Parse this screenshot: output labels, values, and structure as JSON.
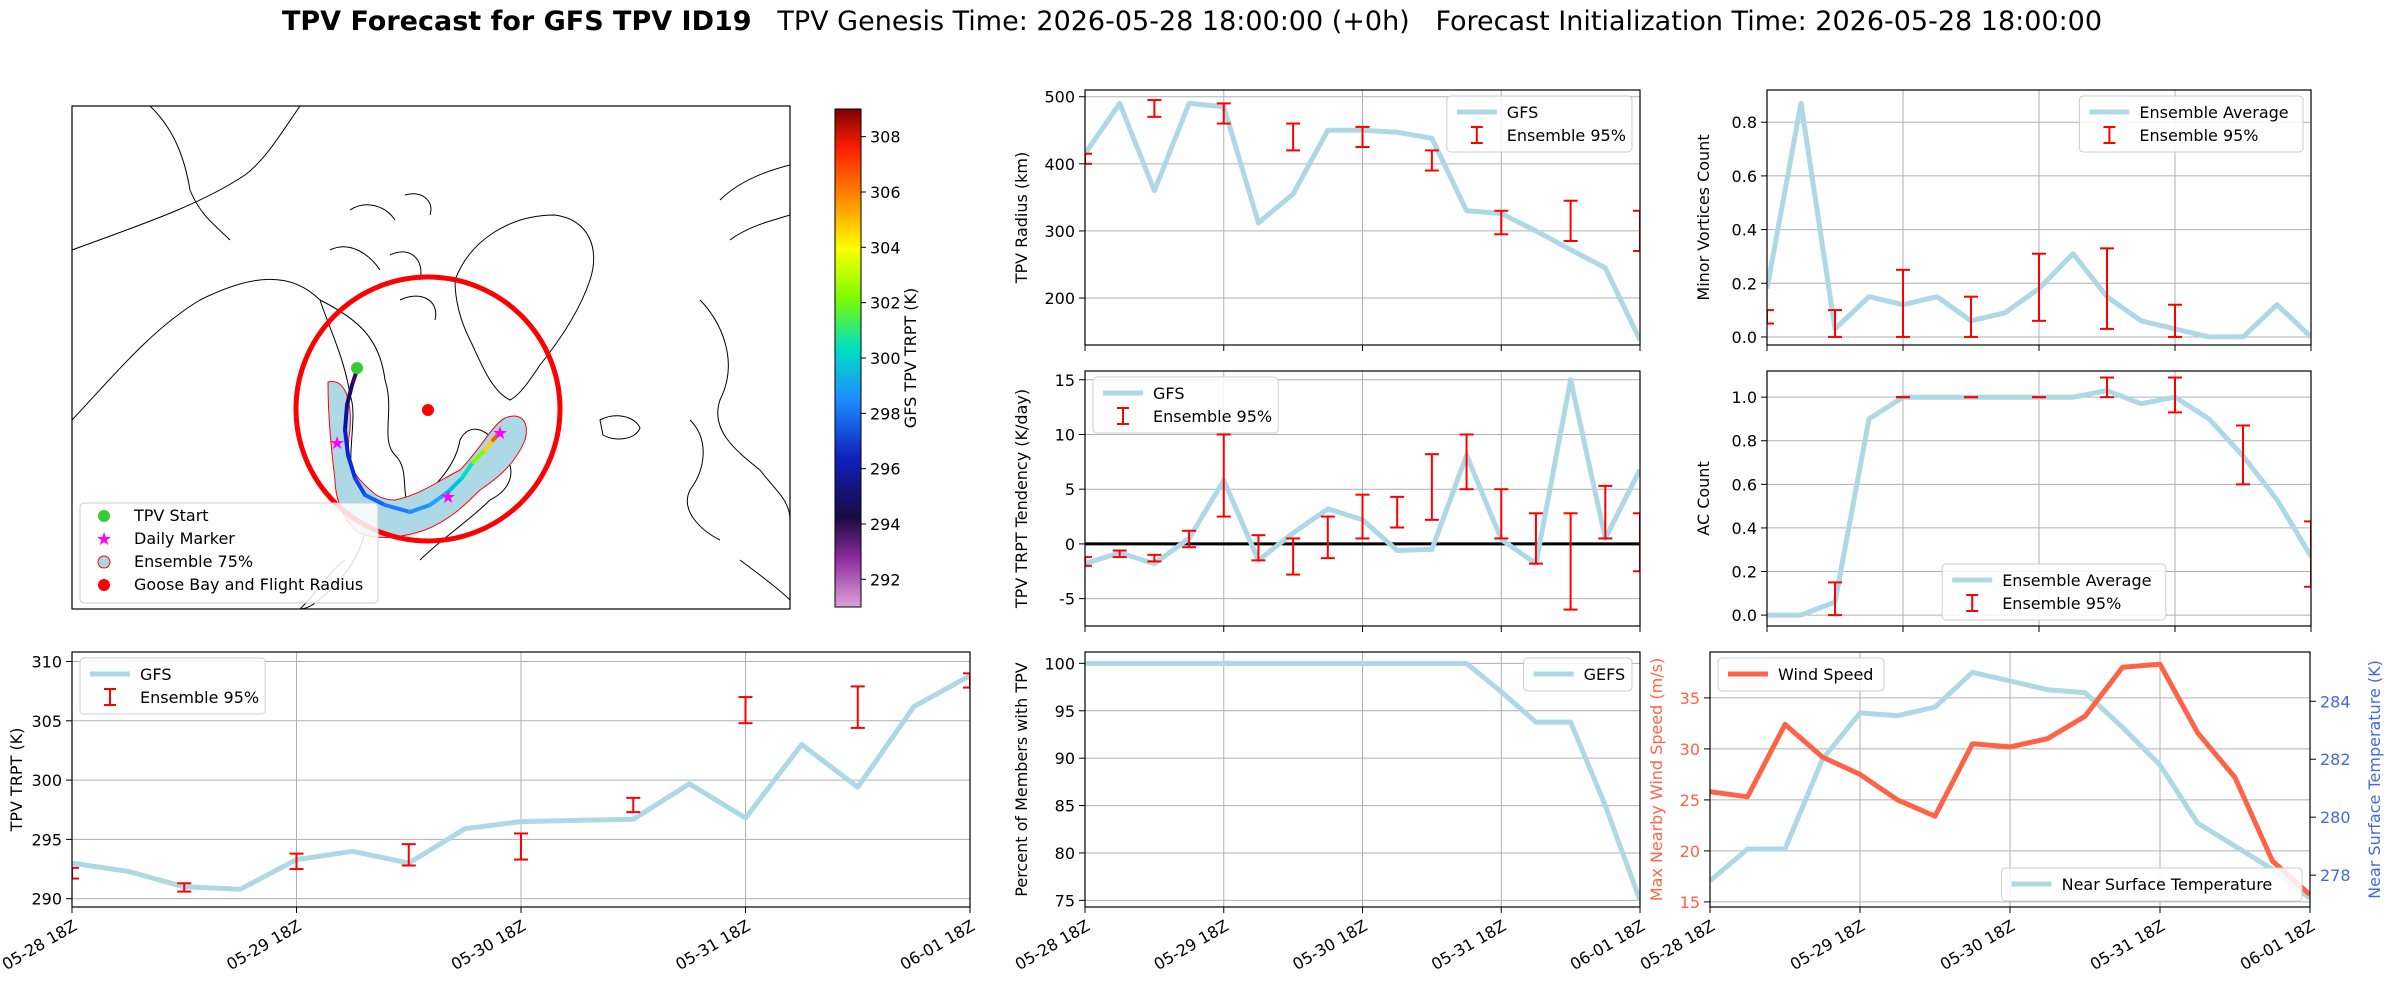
{
  "header": {
    "title_bold": "TPV Forecast for GFS TPV ID19",
    "title_rest": "   TPV Genesis Time: 2026-05-28 18:00:00 (+0h)   Forecast Initialization Time: 2026-05-28 18:00:00"
  },
  "colors": {
    "gfs": "#add8e6",
    "ensemble": "#ff0000",
    "wind": "#ff6347",
    "temp_axis": "#4169e1",
    "grid": "#b0b0b0"
  },
  "map": {
    "colorbar_label": "GFS TPV TRPT (K)",
    "colorbar_ticks": [
      292,
      294,
      296,
      298,
      300,
      302,
      304,
      306,
      308
    ],
    "colorbar_range": [
      291,
      309
    ],
    "legend": [
      "TPV Start",
      "Daily Marker",
      "Ensemble 75%",
      "Goose Bay and Flight Radius"
    ]
  },
  "x_tick_labels": [
    "05-28 18Z",
    "05-29 18Z",
    "05-30 18Z",
    "05-31 18Z",
    "06-01 18Z"
  ],
  "chart_data": [
    {
      "id": "radius",
      "type": "line",
      "ylabel": "TPV Radius (km)",
      "ylim": [
        130,
        510
      ],
      "yticks": [
        200,
        300,
        400,
        500
      ],
      "legend": [
        "GFS",
        "Ensemble 95%"
      ],
      "legend_pos": "top-right",
      "x": [
        0,
        0.25,
        0.5,
        0.75,
        1,
        1.25,
        1.5,
        1.75,
        2,
        2.25,
        2.5,
        2.75,
        3,
        3.25,
        3.5,
        3.75,
        4
      ],
      "gfs": [
        415,
        490,
        360,
        490,
        485,
        312,
        355,
        450,
        450,
        447,
        438,
        330,
        326,
        300,
        272,
        245,
        137
      ],
      "ens": [
        [
          0,
          400,
          415
        ],
        [
          0.5,
          470,
          495
        ],
        [
          1,
          460,
          490
        ],
        [
          1.5,
          420,
          460
        ],
        [
          2,
          425,
          455
        ],
        [
          2.5,
          390,
          420
        ],
        [
          3,
          295,
          330
        ],
        [
          3.5,
          285,
          345
        ],
        [
          4,
          270,
          330
        ]
      ]
    },
    {
      "id": "minor",
      "type": "line",
      "ylabel": "Minor Vortices Count",
      "ylim": [
        -0.03,
        0.92
      ],
      "yticks": [
        0.0,
        0.2,
        0.4,
        0.6,
        0.8
      ],
      "legend": [
        "Ensemble Average",
        "Ensemble 95%"
      ],
      "legend_pos": "top-right",
      "x": [
        0,
        0.25,
        0.5,
        0.75,
        1,
        1.25,
        1.5,
        1.75,
        2,
        2.25,
        2.5,
        2.75,
        3,
        3.25,
        3.5,
        3.75,
        4
      ],
      "gfs": [
        0.18,
        0.87,
        0.03,
        0.15,
        0.12,
        0.15,
        0.06,
        0.09,
        0.18,
        0.31,
        0.15,
        0.06,
        0.03,
        0.0,
        0.0,
        0.12,
        0.0
      ],
      "ens": [
        [
          0,
          0.05,
          0.1
        ],
        [
          0.5,
          0.0,
          0.1
        ],
        [
          1,
          0.0,
          0.25
        ],
        [
          1.5,
          0.0,
          0.15
        ],
        [
          2,
          0.06,
          0.31
        ],
        [
          2.5,
          0.03,
          0.33
        ],
        [
          3,
          0.0,
          0.12
        ]
      ]
    },
    {
      "id": "tendency",
      "type": "line",
      "ylabel": "TPV TRPT Tendency (K/day)",
      "ylim": [
        -7.5,
        15.8
      ],
      "yticks": [
        -5,
        0,
        5,
        10,
        15
      ],
      "legend": [
        "GFS",
        "Ensemble 95%"
      ],
      "legend_pos": "top-left",
      "x": [
        0,
        0.25,
        0.5,
        0.75,
        1,
        1.25,
        1.5,
        1.75,
        2,
        2.25,
        2.5,
        2.75,
        3,
        3.25,
        3.5,
        3.75,
        4
      ],
      "gfs": [
        -1.8,
        -0.8,
        -1.8,
        0.5,
        5.8,
        -1.5,
        1.0,
        3.2,
        2.2,
        -0.6,
        -0.5,
        8.1,
        0.4,
        -1.8,
        15.0,
        0.5,
        6.8
      ],
      "ens": [
        [
          0,
          -2.0,
          -1.2
        ],
        [
          0.25,
          -1.2,
          -0.6
        ],
        [
          0.5,
          -1.6,
          -1.0
        ],
        [
          0.75,
          -0.3,
          1.2
        ],
        [
          1,
          2.5,
          10.0
        ],
        [
          1.25,
          -1.5,
          0.8
        ],
        [
          1.5,
          -2.8,
          0.5
        ],
        [
          1.75,
          -1.3,
          2.5
        ],
        [
          2,
          0.5,
          4.5
        ],
        [
          2.25,
          1.5,
          4.3
        ],
        [
          2.5,
          2.2,
          8.2
        ],
        [
          2.75,
          5.0,
          10.0
        ],
        [
          3,
          0.5,
          5.0
        ],
        [
          3.25,
          -1.8,
          2.8
        ],
        [
          3.5,
          -6.0,
          2.8
        ],
        [
          3.75,
          0.5,
          5.3
        ],
        [
          4,
          -2.5,
          2.8
        ]
      ]
    },
    {
      "id": "ac",
      "type": "line",
      "ylabel": "AC Count",
      "ylim": [
        -0.05,
        1.12
      ],
      "yticks": [
        0.0,
        0.2,
        0.4,
        0.6,
        0.8,
        1.0
      ],
      "legend": [
        "Ensemble Average",
        "Ensemble 95%"
      ],
      "legend_pos": "bottom-center",
      "x": [
        0,
        0.25,
        0.5,
        0.75,
        1,
        1.25,
        1.5,
        1.75,
        2,
        2.25,
        2.5,
        2.75,
        3,
        3.25,
        3.5,
        3.75,
        4
      ],
      "gfs": [
        0.0,
        0.0,
        0.06,
        0.9,
        1.0,
        1.0,
        1.0,
        1.0,
        1.0,
        1.0,
        1.03,
        0.97,
        1.0,
        0.9,
        0.73,
        0.53,
        0.27
      ],
      "ens": [
        [
          0.5,
          0.0,
          0.15
        ],
        [
          1,
          1.0,
          1.0
        ],
        [
          1.5,
          1.0,
          1.0
        ],
        [
          2,
          1.0,
          1.0
        ],
        [
          2.5,
          1.0,
          1.09
        ],
        [
          3,
          0.93,
          1.09
        ],
        [
          3.5,
          0.6,
          0.87
        ],
        [
          4,
          0.13,
          0.43
        ]
      ]
    },
    {
      "id": "trpt",
      "type": "line",
      "ylabel": "TPV TRPT (K)",
      "ylim": [
        289.3,
        310.8
      ],
      "yticks": [
        290,
        295,
        300,
        305,
        310
      ],
      "legend": [
        "GFS",
        "Ensemble 95%"
      ],
      "legend_pos": "top-left",
      "x": [
        0,
        0.25,
        0.5,
        0.75,
        1,
        1.25,
        1.5,
        1.75,
        2,
        2.25,
        2.5,
        2.75,
        3,
        3.25,
        3.5,
        3.75,
        4
      ],
      "gfs": [
        293.0,
        292.3,
        291.0,
        290.8,
        293.3,
        294.0,
        293.0,
        295.9,
        296.5,
        296.6,
        296.7,
        299.7,
        296.8,
        303.0,
        299.4,
        306.2,
        308.8
      ],
      "ens": [
        [
          0,
          291.7,
          292.6
        ],
        [
          0.5,
          290.6,
          291.3
        ],
        [
          1,
          292.5,
          293.8
        ],
        [
          1.5,
          292.8,
          294.6
        ],
        [
          2,
          293.3,
          295.5
        ],
        [
          2.5,
          297.3,
          298.5
        ],
        [
          3,
          304.8,
          307.0
        ],
        [
          3.5,
          304.4,
          307.9
        ],
        [
          4,
          307.8,
          309.0
        ]
      ]
    },
    {
      "id": "percent",
      "type": "line",
      "ylabel": "Percent of Members with TPV",
      "ylim": [
        74.3,
        101.2
      ],
      "yticks": [
        75,
        80,
        85,
        90,
        95,
        100
      ],
      "legend": [
        "GEFS"
      ],
      "legend_pos": "top-right",
      "x": [
        0,
        0.25,
        0.5,
        0.75,
        1,
        1.25,
        1.5,
        1.75,
        2,
        2.25,
        2.5,
        2.75,
        3,
        3.25,
        3.5,
        3.75,
        4
      ],
      "gfs": [
        100,
        100,
        100,
        100,
        100,
        100,
        100,
        100,
        100,
        100,
        100,
        100,
        97,
        93.8,
        93.8,
        85,
        75
      ]
    },
    {
      "id": "wind_temp",
      "type": "line",
      "ylabel": "Max Nearby Wind Speed (m/s)",
      "ylim": [
        14.5,
        39.5
      ],
      "yticks": [
        15,
        20,
        25,
        30,
        35
      ],
      "y2label": "Near Surface Temperature (K)",
      "y2lim": [
        276.9,
        285.7
      ],
      "y2ticks": [
        278,
        280,
        282,
        284
      ],
      "legend": [
        "Wind Speed"
      ],
      "legend2": [
        "Near Surface Temperature"
      ],
      "legend_pos": "top-left",
      "legend2_pos": "bottom-right",
      "x": [
        0,
        0.25,
        0.5,
        0.75,
        1,
        1.25,
        1.5,
        1.75,
        2,
        2.25,
        2.5,
        2.75,
        3,
        3.25,
        3.5,
        3.75,
        4
      ],
      "wind": [
        25.8,
        25.3,
        32.4,
        29.2,
        27.5,
        25.0,
        23.4,
        30.5,
        30.2,
        31.0,
        33.2,
        38.0,
        38.3,
        31.6,
        27.2,
        19.0,
        15.7
      ],
      "temp": [
        277.8,
        278.9,
        278.9,
        282.0,
        283.6,
        283.5,
        283.8,
        285.0,
        284.7,
        284.4,
        284.3,
        283.1,
        281.8,
        279.8,
        279.0,
        278.2,
        277.2
      ]
    }
  ]
}
